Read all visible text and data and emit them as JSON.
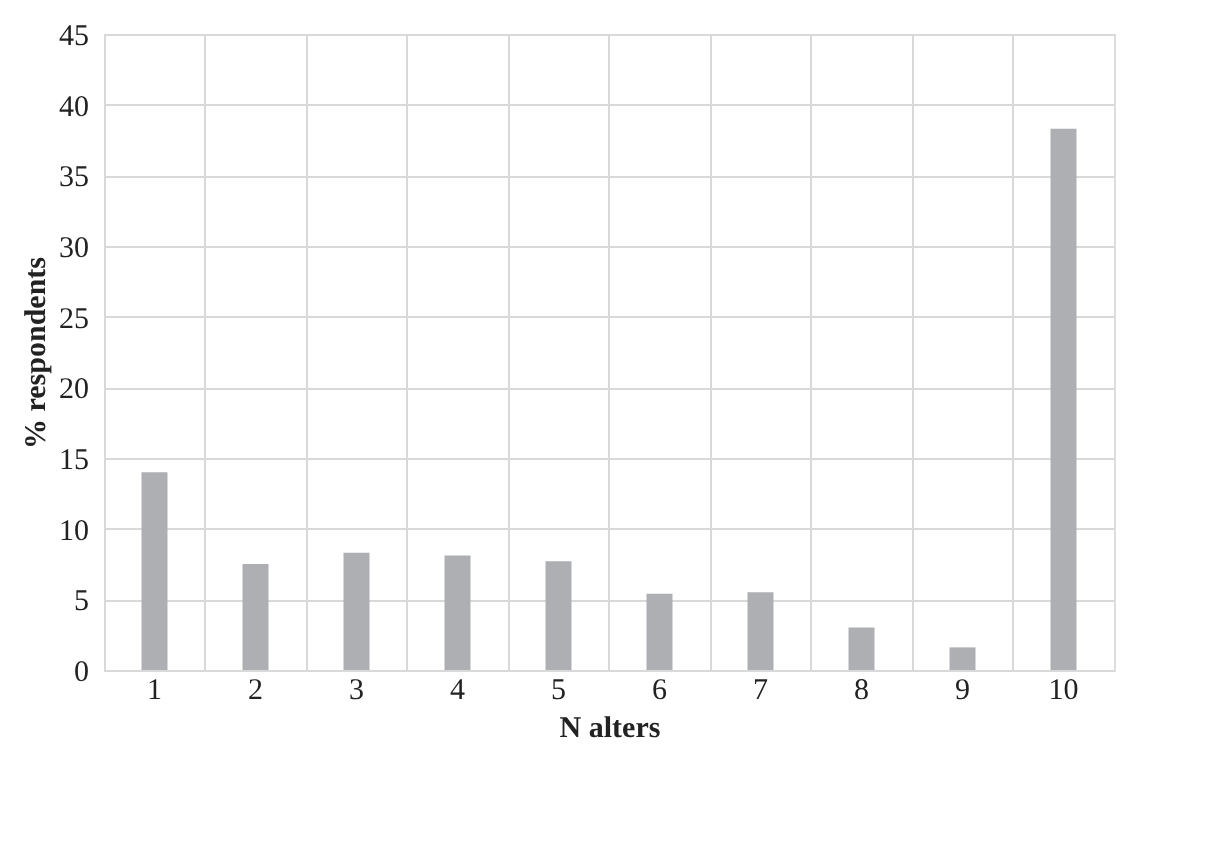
{
  "chart_data": {
    "type": "bar",
    "xlabel": "N alters",
    "ylabel": "% respondents",
    "categories": [
      "1",
      "2",
      "3",
      "4",
      "5",
      "6",
      "7",
      "8",
      "9",
      "10"
    ],
    "values": [
      14.0,
      7.5,
      8.3,
      8.1,
      7.7,
      5.4,
      5.5,
      3.0,
      1.6,
      38.3
    ],
    "color": "#aeafb3",
    "ylim": [
      0,
      45
    ],
    "yticks": [
      0,
      5,
      10,
      15,
      20,
      25,
      30,
      35,
      40,
      45
    ],
    "grid": true
  }
}
